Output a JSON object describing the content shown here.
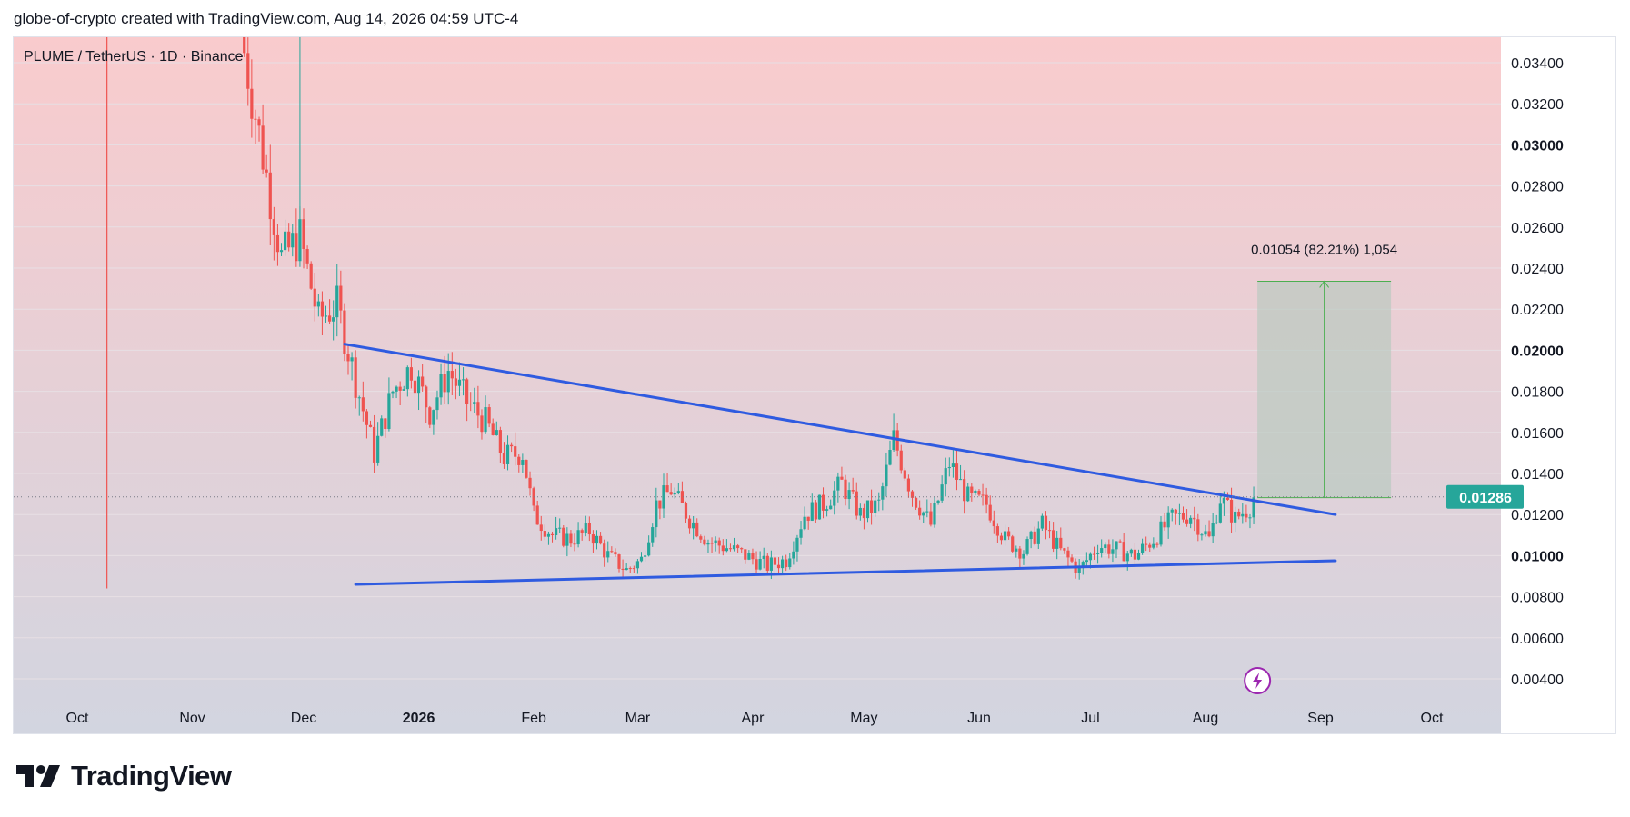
{
  "header": {
    "text": "globe-of-crypto created with TradingView.com, Aug 14, 2026 04:59 UTC-4"
  },
  "symbol": {
    "label": "PLUME / TetherUS · 1D · Binance"
  },
  "footer": {
    "brand": "TradingView",
    "logo_icon": "tradingview-logo-icon"
  },
  "colors": {
    "bull": "#26a69a",
    "bear": "#ef5350",
    "trendline": "#2f5be0",
    "bg_top": "#f9cbcd",
    "bg_bottom": "#d2d5e0",
    "price_tag": "#26a69a",
    "measure_fill": "#b7c9bf",
    "measure_line": "#4caf50",
    "grid": "#e7dfe4"
  },
  "chart_data": {
    "type": "candlestick",
    "y_axis": {
      "ticks": [
        "0.03400",
        "0.03200",
        "0.03000",
        "0.02800",
        "0.02600",
        "0.02400",
        "0.02200",
        "0.02000",
        "0.01800",
        "0.01600",
        "0.01400",
        "0.01200",
        "0.01000",
        "0.00800",
        "0.00600",
        "0.00400"
      ],
      "bold_ticks": [
        "0.03000",
        "0.02000",
        "0.01000"
      ],
      "ylim": [
        0.0033,
        0.0355
      ]
    },
    "x_axis": {
      "ticks": [
        "Oct",
        "Nov",
        "Dec",
        "2026",
        "Feb",
        "Mar",
        "Apr",
        "May",
        "Jun",
        "Jul",
        "Aug",
        "Sep",
        "Oct"
      ],
      "bold_ticks": [
        "2026"
      ],
      "tick_dates": [
        "2025-10-01",
        "2025-11-01",
        "2025-12-01",
        "2026-01-01",
        "2026-02-01",
        "2026-03-01",
        "2026-04-01",
        "2026-05-01",
        "2026-06-01",
        "2026-07-01",
        "2026-08-01",
        "2026-09-01",
        "2026-10-01"
      ]
    },
    "last_price": {
      "label": "0.01286",
      "value": 0.01286
    },
    "trendlines": [
      {
        "name": "upper",
        "from": [
          "2025-12-12",
          0.0203
        ],
        "to": [
          "2026-09-05",
          0.012
        ]
      },
      {
        "name": "lower",
        "from": [
          "2025-12-15",
          0.0086
        ],
        "to": [
          "2026-09-05",
          0.00975
        ]
      }
    ],
    "listing_marker": {
      "date": "2025-10-09",
      "from": 0.0084,
      "to": 0.0355
    },
    "price_range_measure": {
      "label": "0.01054 (82.21%) 1,054",
      "from_date": "2026-08-15",
      "to_date": "2026-09-20",
      "from_price": 0.01282,
      "to_price": 0.02336
    },
    "event_icon": {
      "name": "lightning-icon",
      "date": "2026-08-15"
    },
    "closes": [
      [
        "2025-11-15",
        0.0345
      ],
      [
        "2025-11-20",
        0.0295
      ],
      [
        "2025-11-25",
        0.0245
      ],
      [
        "2025-11-30",
        0.0255
      ],
      [
        "2025-12-05",
        0.0215
      ],
      [
        "2025-12-10",
        0.0222
      ],
      [
        "2025-12-15",
        0.0185
      ],
      [
        "2025-12-20",
        0.015
      ],
      [
        "2025-12-25",
        0.018
      ],
      [
        "2025-12-30",
        0.0192
      ],
      [
        "2026-01-04",
        0.017
      ],
      [
        "2026-01-09",
        0.019
      ],
      [
        "2026-01-14",
        0.0175
      ],
      [
        "2026-01-19",
        0.0165
      ],
      [
        "2026-01-24",
        0.0148
      ],
      [
        "2026-01-29",
        0.015
      ],
      [
        "2026-02-01",
        0.012
      ],
      [
        "2026-02-06",
        0.011
      ],
      [
        "2026-02-11",
        0.0108
      ],
      [
        "2026-02-16",
        0.0112
      ],
      [
        "2026-02-21",
        0.01
      ],
      [
        "2026-02-26",
        0.0093
      ],
      [
        "2026-03-02",
        0.0098
      ],
      [
        "2026-03-06",
        0.0125
      ],
      [
        "2026-03-10",
        0.0132
      ],
      [
        "2026-03-15",
        0.0118
      ],
      [
        "2026-03-20",
        0.0107
      ],
      [
        "2026-03-25",
        0.0104
      ],
      [
        "2026-03-30",
        0.01
      ],
      [
        "2026-04-05",
        0.0095
      ],
      [
        "2026-04-10",
        0.0098
      ],
      [
        "2026-04-15",
        0.012
      ],
      [
        "2026-04-20",
        0.0125
      ],
      [
        "2026-04-25",
        0.0135
      ],
      [
        "2026-04-30",
        0.012
      ],
      [
        "2026-05-05",
        0.0125
      ],
      [
        "2026-05-09",
        0.0157
      ],
      [
        "2026-05-14",
        0.013
      ],
      [
        "2026-05-19",
        0.0115
      ],
      [
        "2026-05-24",
        0.0145
      ],
      [
        "2026-05-29",
        0.0128
      ],
      [
        "2026-06-03",
        0.0125
      ],
      [
        "2026-06-08",
        0.0108
      ],
      [
        "2026-06-13",
        0.0102
      ],
      [
        "2026-06-18",
        0.0115
      ],
      [
        "2026-06-23",
        0.0102
      ],
      [
        "2026-06-28",
        0.0093
      ],
      [
        "2026-07-03",
        0.0105
      ],
      [
        "2026-07-08",
        0.0103
      ],
      [
        "2026-07-13",
        0.01
      ],
      [
        "2026-07-18",
        0.0108
      ],
      [
        "2026-07-23",
        0.0118
      ],
      [
        "2026-07-28",
        0.012
      ],
      [
        "2026-08-02",
        0.0108
      ],
      [
        "2026-08-05",
        0.0128
      ],
      [
        "2026-08-09",
        0.0118
      ],
      [
        "2026-08-13",
        0.0124
      ],
      [
        "2026-08-14",
        0.01286
      ]
    ]
  }
}
